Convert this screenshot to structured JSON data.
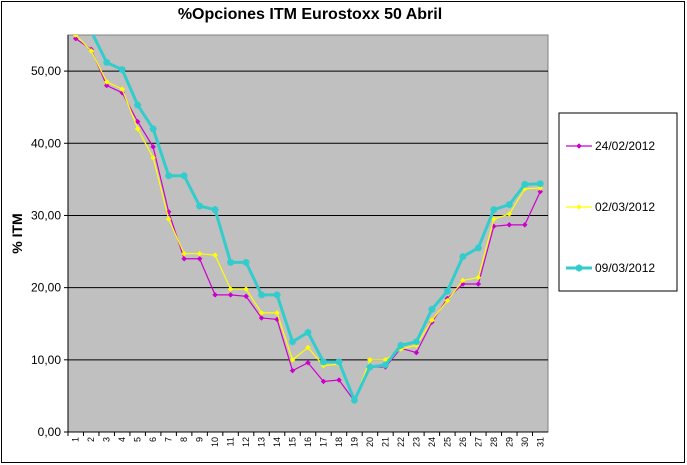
{
  "chart_data": {
    "type": "line",
    "title": "%Opciones ITM Eurostoxx 50 Abril",
    "ylabel": "% ITM",
    "xlabel": "",
    "ylim": [
      0,
      55
    ],
    "yticks": [
      0,
      10,
      20,
      30,
      40,
      50
    ],
    "ytick_labels": [
      "0,00",
      "10,00",
      "20,00",
      "30,00",
      "40,00",
      "50,00"
    ],
    "grid": "horizontal",
    "plot_background": "#C0C0C0",
    "legend_position": "right",
    "x": [
      "1",
      "2",
      "3",
      "4",
      "5",
      "6",
      "7",
      "8",
      "9",
      "10",
      "11",
      "12",
      "13",
      "14",
      "15",
      "16",
      "17",
      "18",
      "19",
      "20",
      "21",
      "22",
      "23",
      "24",
      "25",
      "26",
      "27",
      "28",
      "29",
      "30",
      "31"
    ],
    "series": [
      {
        "name": "24/02/2012",
        "color": "#CC00CC",
        "marker": "diamond",
        "values": [
          54.5,
          53.0,
          48.0,
          47.0,
          43.0,
          39.5,
          30.5,
          24.0,
          24.0,
          19.0,
          19.0,
          18.8,
          15.8,
          15.6,
          8.5,
          9.6,
          7.0,
          7.2,
          4.3,
          9.0,
          9.0,
          11.6,
          11.0,
          15.2,
          18.5,
          20.5,
          20.5,
          28.5,
          28.7,
          28.7,
          33.3
        ]
      },
      {
        "name": "02/03/2012",
        "color": "#FFFF00",
        "marker": "diamond",
        "values": [
          55.0,
          52.8,
          48.5,
          47.5,
          42.0,
          38.0,
          29.5,
          24.7,
          24.7,
          24.5,
          19.8,
          19.8,
          16.5,
          16.5,
          10.0,
          11.7,
          9.2,
          9.4,
          4.3,
          10.0,
          10.0,
          11.5,
          12.0,
          15.5,
          18.2,
          21.0,
          21.4,
          29.5,
          30.2,
          33.7,
          33.8
        ]
      },
      {
        "name": "09/03/2012",
        "color": "#33CCCC",
        "marker": "star",
        "values": [
          56.5,
          55.5,
          51.2,
          50.2,
          45.3,
          42.0,
          35.5,
          35.5,
          31.3,
          30.8,
          23.5,
          23.5,
          19.0,
          19.0,
          12.5,
          13.8,
          9.7,
          9.7,
          4.4,
          9.0,
          9.3,
          12.0,
          12.5,
          17.0,
          19.5,
          24.3,
          25.5,
          30.8,
          31.5,
          34.3,
          34.4
        ]
      }
    ]
  }
}
